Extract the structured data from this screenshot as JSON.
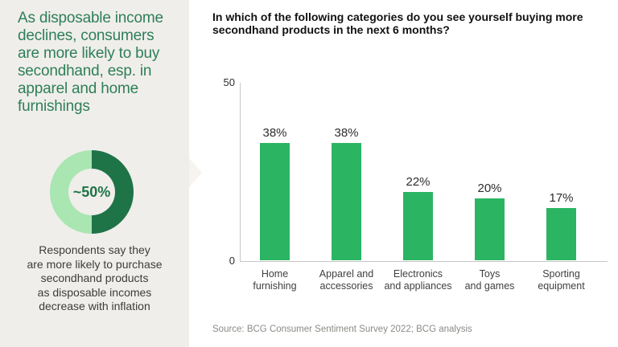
{
  "sidebar": {
    "headline": "As disposable income declines, consumers are more likely to buy secondhand, esp. in apparel and home furnishings",
    "headline_lines": [
      "As disposable income",
      "declines, consumers",
      "are more likely to buy",
      "secondhand, esp. in",
      "apparel and home",
      "furnishings"
    ],
    "donut": {
      "label": "~50%",
      "value_pct": 50,
      "dark_color": "#1e7347",
      "light_color": "#a9e6b2"
    },
    "caption": "Respondents say they are more likely to purchase secondhand products as disposable incomes decrease with inflation",
    "caption_lines": [
      "Respondents say they",
      "are more likely to purchase",
      "secondhand products",
      "as disposable incomes",
      "decrease with inflation"
    ]
  },
  "main": {
    "question": "In which of the following categories do you see yourself buying more secondhand products in the next 6 months?",
    "source": "Source: BCG Consumer Sentiment Survey 2022; BCG analysis"
  },
  "chart_data": {
    "type": "bar",
    "title": "In which of the following categories do you see yourself buying more secondhand products in the next 6 months?",
    "categories": [
      "Home furnishing",
      "Apparel and accessories",
      "Electronics and appliances",
      "Toys and games",
      "Sporting equipment"
    ],
    "category_lines": [
      [
        "Home",
        "furnishing"
      ],
      [
        "Apparel and",
        "accessories"
      ],
      [
        "Electronics",
        "and appliances"
      ],
      [
        "Toys",
        "and games"
      ],
      [
        "Sporting",
        "equipment"
      ]
    ],
    "values": [
      38,
      38,
      22,
      20,
      17
    ],
    "labels": [
      "38%",
      "38%",
      "22%",
      "20%",
      "17%"
    ],
    "ylim": [
      0,
      50
    ],
    "yticks": [
      0,
      50
    ],
    "xlabel": "",
    "ylabel": "",
    "grid": false,
    "legend": false,
    "bar_color": "#2bb563"
  },
  "colors": {
    "sidebar_bg": "#f0eeea",
    "headline_green": "#2e7f58",
    "bar_green": "#2bb563",
    "donut_dark_green": "#1e7347",
    "donut_light_green": "#a9e6b2",
    "axis_gray": "#c8c6c3",
    "source_gray": "#8d8a85"
  }
}
